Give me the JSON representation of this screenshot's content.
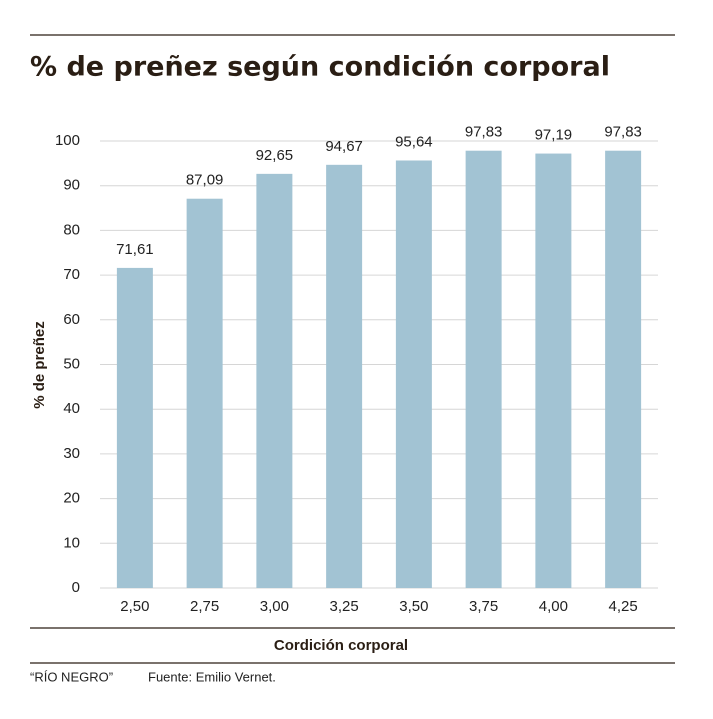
{
  "chart_data": {
    "type": "bar",
    "title": "% de preñez según condición corporal",
    "y_label": "% de preñez",
    "x_label": "Cordición corporal",
    "categories": [
      "2,50",
      "2,75",
      "3,00",
      "3,25",
      "3,50",
      "3,75",
      "4,00",
      "4,25"
    ],
    "values": [
      71.61,
      87.09,
      92.65,
      94.67,
      95.64,
      97.83,
      97.19,
      97.83
    ],
    "value_labels": [
      "71,61",
      "87,09",
      "92,65",
      "94,67",
      "95,64",
      "97,83",
      "97,19",
      "97,83"
    ],
    "color": "#a2c3d3",
    "ylim": [
      0,
      100
    ],
    "yticks": [
      0,
      10,
      20,
      30,
      40,
      50,
      60,
      70,
      80,
      90,
      100
    ],
    "grid": true,
    "credit": "“RÍO NEGRO”",
    "source": "Fuente: Emilio Vernet."
  }
}
